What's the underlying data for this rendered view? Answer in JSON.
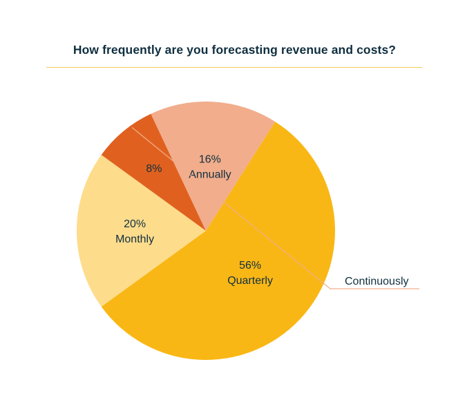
{
  "chart_data": {
    "type": "pie",
    "title": "How frequently are you forecasting revenue and costs?",
    "slices": [
      {
        "label": "Quarterly",
        "value": 56,
        "value_text": "56%",
        "color": "#f9b715"
      },
      {
        "label": "Monthly",
        "value": 20,
        "value_text": "20%",
        "color": "#fddc8c"
      },
      {
        "label": "Continuously",
        "value": 8,
        "value_text": "8%",
        "color": "#e0611f"
      },
      {
        "label": "Annually",
        "value": 16,
        "value_text": "16%",
        "color": "#f1ad8c"
      }
    ],
    "callout": {
      "label": "Continuously",
      "line_color": "#f1ad8c"
    },
    "rule_color": "#f3c95a",
    "text_color": "#0f2f3f"
  }
}
